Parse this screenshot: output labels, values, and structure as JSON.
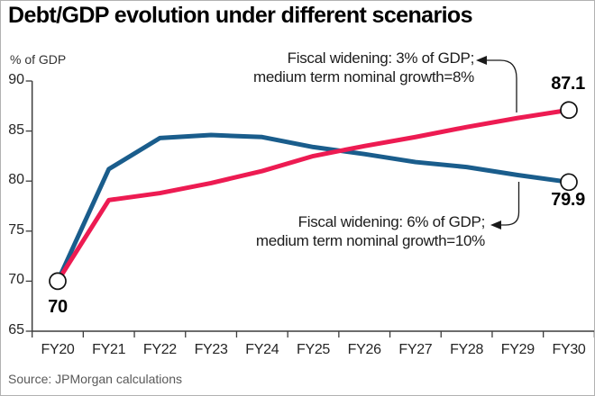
{
  "title": "Debt/GDP evolution under different scenarios",
  "source": "Source: JPMorgan calculations",
  "colors": {
    "scenario_3pct_line": "#ed1b52",
    "scenario_6pct_line": "#1a5d8c",
    "axis": "#3c3c3c",
    "source_text": "#595959"
  },
  "chart_data": {
    "type": "line",
    "title": "Debt/GDP evolution under different scenarios",
    "ylabel": "% of GDP",
    "xlabel": "",
    "ylim": [
      65,
      90
    ],
    "y_ticks": [
      65,
      70,
      75,
      80,
      85,
      90
    ],
    "grid": "off",
    "legend": "annotated-inline",
    "categories": [
      "FY20",
      "FY21",
      "FY22",
      "FY23",
      "FY24",
      "FY25",
      "FY26",
      "FY27",
      "FY28",
      "FY29",
      "FY30"
    ],
    "series": [
      {
        "name": "Fiscal widening: 3% of GDP; medium term nominal growth=8%",
        "color": "#ed1b52",
        "values": [
          70,
          78.1,
          78.8,
          79.8,
          81.0,
          82.5,
          83.5,
          84.4,
          85.4,
          86.3,
          87.1
        ],
        "start_label": "70",
        "end_label": "87.1"
      },
      {
        "name": "Fiscal widening: 6% of GDP; medium term nominal growth=10%",
        "color": "#1a5d8c",
        "values": [
          70,
          81.2,
          84.3,
          84.6,
          84.4,
          83.4,
          82.7,
          81.9,
          81.4,
          80.6,
          79.9
        ],
        "end_label": "79.9"
      }
    ],
    "annotations": {
      "top": {
        "line1": "Fiscal widening: 3% of GDP;",
        "line2": "medium term nominal growth=8%"
      },
      "bottom": {
        "line1": "Fiscal widening: 6% of GDP;",
        "line2": "medium term nominal growth=10%"
      }
    }
  }
}
